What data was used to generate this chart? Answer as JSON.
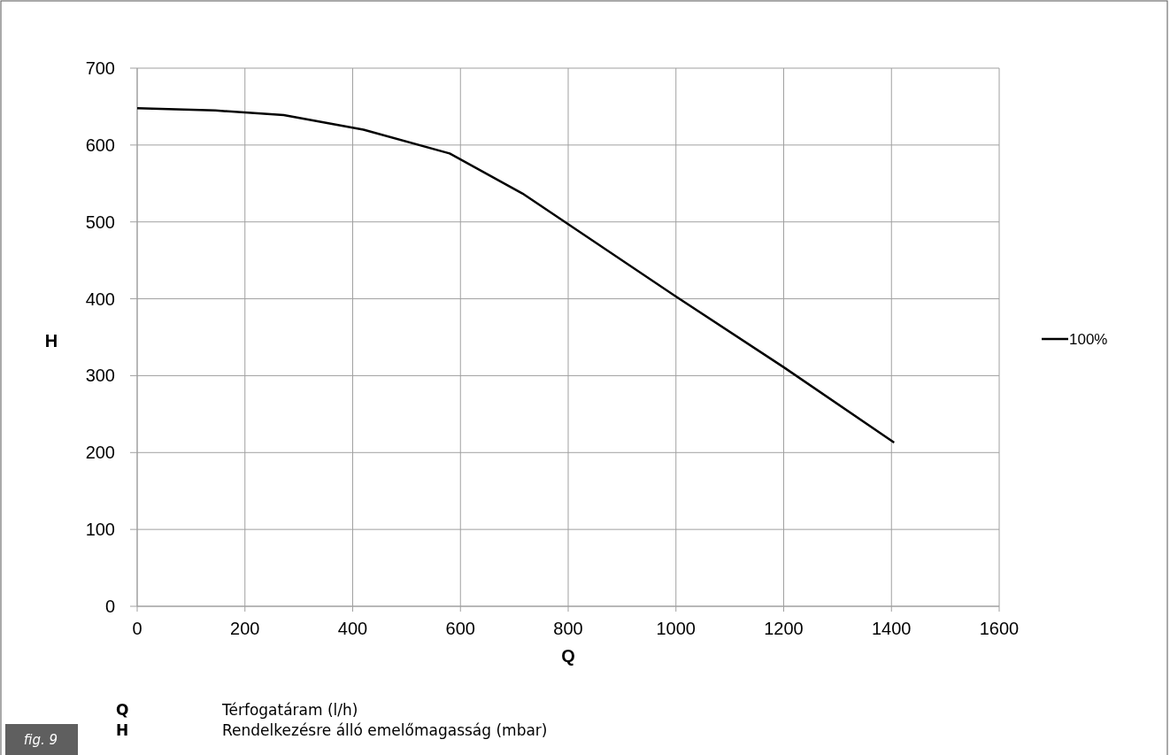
{
  "chart_data": {
    "type": "line",
    "xlabel": "Q",
    "ylabel": "H",
    "xlim": [
      0,
      1600
    ],
    "xticks": [
      0,
      200,
      400,
      600,
      800,
      1000,
      1200,
      1400,
      1600
    ],
    "ylim": [
      0,
      700
    ],
    "yticks": [
      0,
      100,
      200,
      300,
      400,
      500,
      600,
      700
    ],
    "grid": true,
    "legend": "right",
    "marker": "none",
    "line_style": "solid",
    "series": [
      {
        "name": "100%",
        "color": "#000000",
        "x": [
          0,
          145,
          272,
          420,
          580,
          715,
          800,
          1000,
          1200,
          1405
        ],
        "values": [
          648,
          645,
          639,
          620,
          589,
          537,
          497,
          403,
          311,
          213
        ]
      }
    ],
    "annotations": [
      "Q",
      "Térfogatáram (l/h)",
      "H",
      "Rendelkezésre álló emelőmagasság (mbar)",
      "fig. 9"
    ]
  }
}
